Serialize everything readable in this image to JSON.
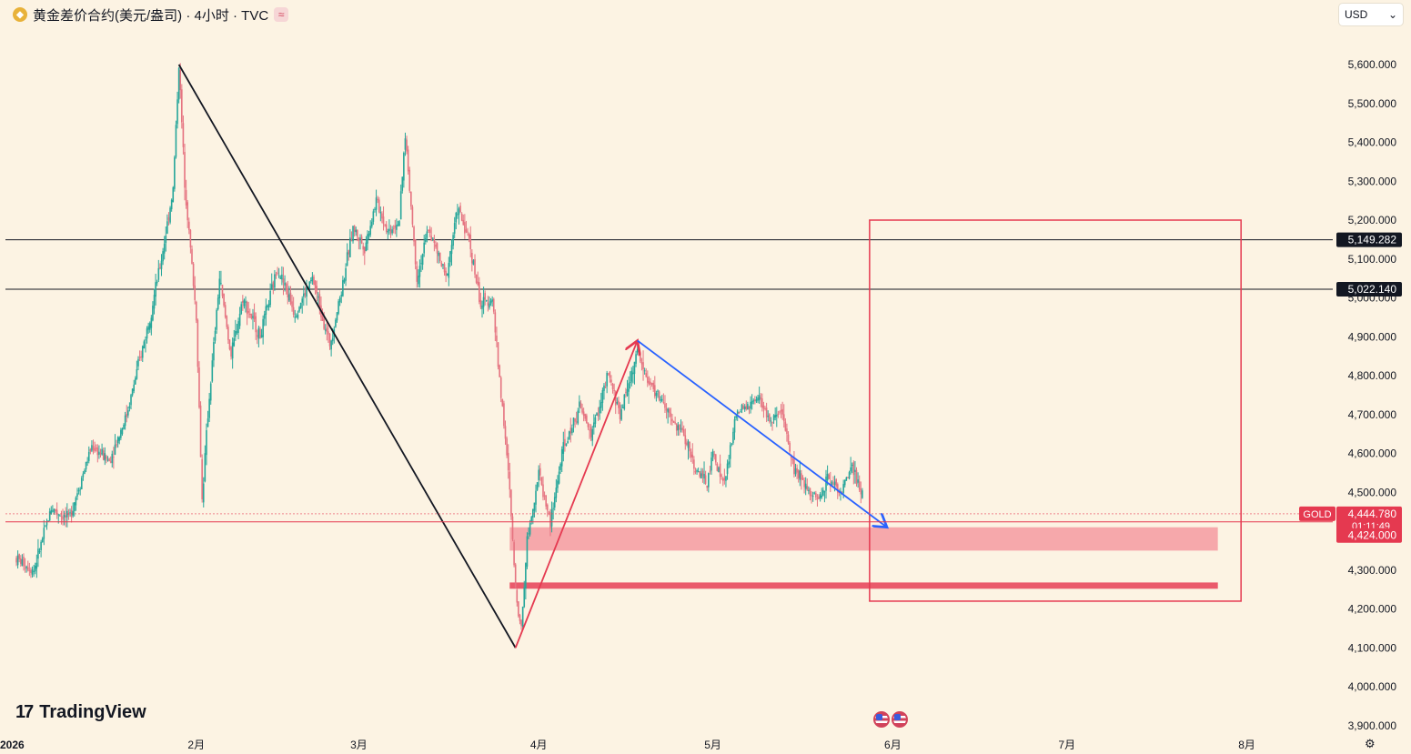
{
  "header": {
    "instrument": "黄金差价合约(美元/盎司)",
    "interval": "4小时",
    "source": "TVC",
    "title": "黄金差价合约(美元/盎司) · 4小时 · TVC",
    "wave_icon": "≈"
  },
  "currency_select": {
    "value": "USD"
  },
  "branding": {
    "logo_text": "TradingView",
    "logo_mark": "17"
  },
  "colors": {
    "background": "#fcf3e3",
    "bull": "#26a69a",
    "bear": "#e57380",
    "accent_red": "#e53950",
    "zone": "#f5a3a8",
    "trend_blue": "#2962ff"
  },
  "chart_data": {
    "type": "candlestick",
    "ylim": [
      3870,
      5650
    ],
    "xlim": [
      "2026-01-01",
      "2026-08-08"
    ],
    "y_ticks": [
      3900,
      4000,
      4100,
      4200,
      4300,
      4500,
      4600,
      4700,
      4800,
      4900,
      5000,
      5100,
      5200,
      5300,
      5400,
      5500,
      5600
    ],
    "y_tick_labels": [
      "3,900.000",
      "4,000.000",
      "4,100.000",
      "4,200.000",
      "4,300.000",
      "4,500.000",
      "4,600.000",
      "4,700.000",
      "4,800.000",
      "4,900.000",
      "5,000.000",
      "5,100.000",
      "5,200.000",
      "5,300.000",
      "5,400.000",
      "5,500.000",
      "5,600.000"
    ],
    "x_ticks": [
      {
        "date": "2026-01-01",
        "label": "2026"
      },
      {
        "date": "2026-02-01",
        "label": "2月"
      },
      {
        "date": "2026-03-01",
        "label": "3月"
      },
      {
        "date": "2026-04-01",
        "label": "4月"
      },
      {
        "date": "2026-05-01",
        "label": "5月"
      },
      {
        "date": "2026-06-01",
        "label": "6月"
      },
      {
        "date": "2026-07-01",
        "label": "7月"
      },
      {
        "date": "2026-08-01",
        "label": "8月"
      }
    ],
    "price_path": [
      [
        "2026-01-01",
        4330
      ],
      [
        "2026-01-04",
        4300
      ],
      [
        "2026-01-07",
        4460
      ],
      [
        "2026-01-10",
        4430
      ],
      [
        "2026-01-14",
        4620
      ],
      [
        "2026-01-17",
        4580
      ],
      [
        "2026-01-20",
        4700
      ],
      [
        "2026-01-24",
        4950
      ],
      [
        "2026-01-26",
        5100
      ],
      [
        "2026-01-28",
        5280
      ],
      [
        "2026-01-29",
        5600
      ],
      [
        "2026-01-30",
        5300
      ],
      [
        "2026-02-01",
        4950
      ],
      [
        "2026-02-02",
        4480
      ],
      [
        "2026-02-03",
        4700
      ],
      [
        "2026-02-05",
        5050
      ],
      [
        "2026-02-07",
        4850
      ],
      [
        "2026-02-09",
        5000
      ],
      [
        "2026-02-12",
        4900
      ],
      [
        "2026-02-15",
        5080
      ],
      [
        "2026-02-18",
        4960
      ],
      [
        "2026-02-21",
        5050
      ],
      [
        "2026-02-24",
        4880
      ],
      [
        "2026-02-26",
        5020
      ],
      [
        "2026-02-28",
        5180
      ],
      [
        "2026-03-02",
        5130
      ],
      [
        "2026-03-04",
        5250
      ],
      [
        "2026-03-06",
        5170
      ],
      [
        "2026-03-08",
        5200
      ],
      [
        "2026-03-09",
        5420
      ],
      [
        "2026-03-11",
        5050
      ],
      [
        "2026-03-13",
        5180
      ],
      [
        "2026-03-16",
        5050
      ],
      [
        "2026-03-18",
        5230
      ],
      [
        "2026-03-20",
        5150
      ],
      [
        "2026-03-22",
        4980
      ],
      [
        "2026-03-24",
        5000
      ],
      [
        "2026-03-25",
        4830
      ],
      [
        "2026-03-26",
        4680
      ],
      [
        "2026-03-27",
        4500
      ],
      [
        "2026-03-28",
        4250
      ],
      [
        "2026-03-29",
        4150
      ],
      [
        "2026-03-30",
        4380
      ],
      [
        "2026-04-01",
        4550
      ],
      [
        "2026-04-03",
        4420
      ],
      [
        "2026-04-05",
        4600
      ],
      [
        "2026-04-08",
        4720
      ],
      [
        "2026-04-10",
        4650
      ],
      [
        "2026-04-13",
        4800
      ],
      [
        "2026-04-15",
        4700
      ],
      [
        "2026-04-18",
        4860
      ],
      [
        "2026-04-20",
        4780
      ],
      [
        "2026-04-22",
        4740
      ],
      [
        "2026-04-24",
        4680
      ],
      [
        "2026-04-26",
        4650
      ],
      [
        "2026-04-28",
        4560
      ],
      [
        "2026-04-30",
        4520
      ],
      [
        "2026-05-01",
        4600
      ],
      [
        "2026-05-03",
        4520
      ],
      [
        "2026-05-05",
        4700
      ],
      [
        "2026-05-07",
        4720
      ],
      [
        "2026-05-09",
        4740
      ],
      [
        "2026-05-11",
        4680
      ],
      [
        "2026-05-13",
        4700
      ],
      [
        "2026-05-15",
        4560
      ],
      [
        "2026-05-17",
        4520
      ],
      [
        "2026-05-19",
        4480
      ],
      [
        "2026-05-21",
        4540
      ],
      [
        "2026-05-23",
        4500
      ],
      [
        "2026-05-25",
        4560
      ],
      [
        "2026-05-27",
        4480
      ]
    ],
    "horizontal_lines": [
      {
        "price": 5149.282,
        "label": "5,149.282"
      },
      {
        "price": 5022.14,
        "label": "5,022.140"
      }
    ],
    "current_price": {
      "symbol": "GOLD",
      "price": 4444.78,
      "label": "4,444.780",
      "countdown": "01:11:49"
    },
    "alert_line": {
      "price": 4424.0,
      "label": "4,424.000"
    },
    "zones": [
      {
        "y_top": 4410,
        "y_bottom": 4350,
        "x_start": "2026-03-27",
        "x_end": "2026-07-27"
      },
      {
        "y_top": 4268,
        "y_bottom": 4252,
        "x_start": "2026-03-27",
        "x_end": "2026-07-27"
      }
    ],
    "target_box": {
      "y_top": 5200,
      "y_bottom": 4220,
      "x_start": "2026-05-28",
      "x_end": "2026-07-31"
    },
    "trend_lines": [
      {
        "from": [
          "2026-01-29",
          5600
        ],
        "to": [
          "2026-03-28",
          4100
        ],
        "color": "#131722"
      },
      {
        "from": [
          "2026-03-28",
          4100
        ],
        "to": [
          "2026-04-18",
          4890
        ],
        "color": "#e53950",
        "arrow": true
      },
      {
        "from": [
          "2026-04-18",
          4890
        ],
        "to": [
          "2026-05-31",
          4410
        ],
        "color": "#2962ff",
        "arrow": true
      }
    ]
  }
}
